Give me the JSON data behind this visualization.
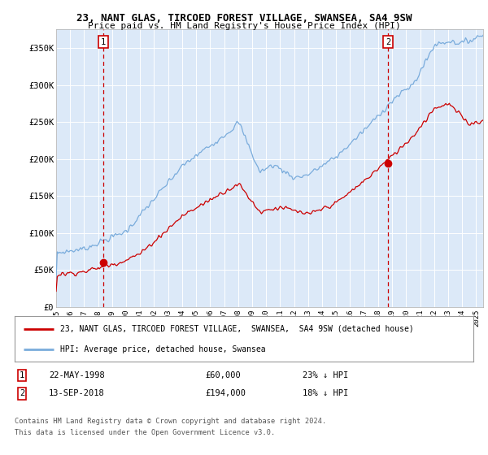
{
  "title1": "23, NANT GLAS, TIRCOED FOREST VILLAGE, SWANSEA, SA4 9SW",
  "title2": "Price paid vs. HM Land Registry's House Price Index (HPI)",
  "ylabel_ticks": [
    "£0",
    "£50K",
    "£100K",
    "£150K",
    "£200K",
    "£250K",
    "£300K",
    "£350K"
  ],
  "ytick_values": [
    0,
    50000,
    100000,
    150000,
    200000,
    250000,
    300000,
    350000
  ],
  "ylim": [
    0,
    375000
  ],
  "xlim_start": 1995.0,
  "xlim_end": 2025.5,
  "plot_bg": "#dce9f8",
  "grid_color": "#ffffff",
  "hpi_color": "#7aacdc",
  "price_color": "#cc0000",
  "dashed_color": "#cc0000",
  "sale1_x": 1998.38,
  "sale1_y": 60000,
  "sale1_label": "1",
  "sale1_date": "22-MAY-1998",
  "sale1_price": "£60,000",
  "sale1_hpi": "23% ↓ HPI",
  "sale2_x": 2018.71,
  "sale2_y": 194000,
  "sale2_label": "2",
  "sale2_date": "13-SEP-2018",
  "sale2_price": "£194,000",
  "sale2_hpi": "18% ↓ HPI",
  "legend_line1": "23, NANT GLAS, TIRCOED FOREST VILLAGE,  SWANSEA,  SA4 9SW (detached house)",
  "legend_line2": "HPI: Average price, detached house, Swansea",
  "footer1": "Contains HM Land Registry data © Crown copyright and database right 2024.",
  "footer2": "This data is licensed under the Open Government Licence v3.0.",
  "xtick_years": [
    1995,
    1996,
    1997,
    1998,
    1999,
    2000,
    2001,
    2002,
    2003,
    2004,
    2005,
    2006,
    2007,
    2008,
    2009,
    2010,
    2011,
    2012,
    2013,
    2014,
    2015,
    2016,
    2017,
    2018,
    2019,
    2020,
    2021,
    2022,
    2023,
    2024,
    2025
  ]
}
